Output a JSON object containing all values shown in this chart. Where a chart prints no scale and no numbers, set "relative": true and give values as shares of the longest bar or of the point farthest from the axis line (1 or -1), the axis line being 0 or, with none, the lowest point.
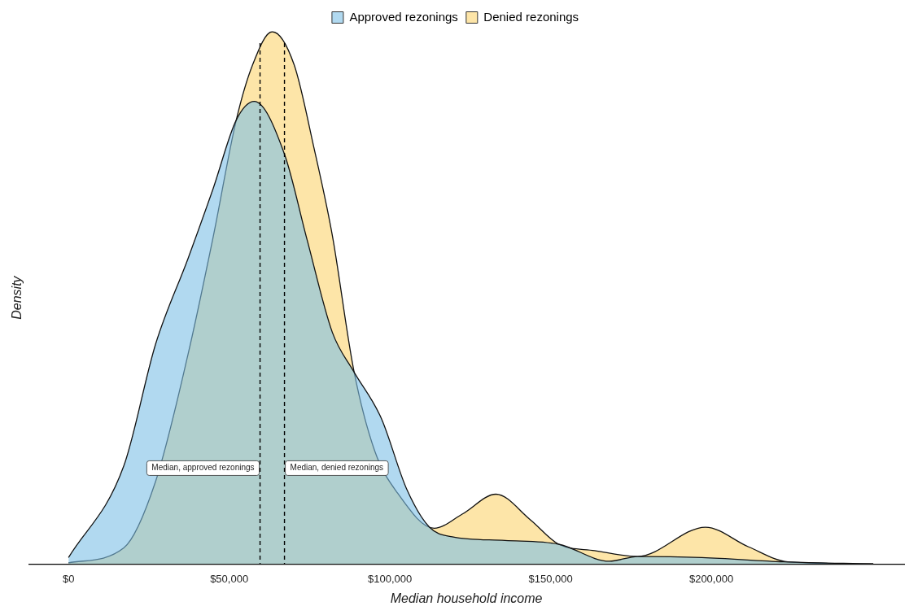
{
  "chart_data": {
    "type": "area",
    "relative": true,
    "xlabel": "Median household income",
    "ylabel": "Density",
    "xlim": [
      -12400,
      260000
    ],
    "xticks": [
      {
        "value": 0,
        "label": "$0"
      },
      {
        "value": 50000,
        "label": "$50,000"
      },
      {
        "value": 100000,
        "label": "$100,000"
      },
      {
        "value": 150000,
        "label": "$150,000"
      },
      {
        "value": 200000,
        "label": "$200,000"
      }
    ],
    "legend": "top",
    "series": [
      {
        "name": "Approved rezonings",
        "color": "#7dbfe6",
        "x": [
          0,
          17200,
          27100,
          37200,
          45100,
          52200,
          57800,
          67200,
          74200,
          82100,
          88700,
          97300,
          105200,
          112300,
          119400,
          135800,
          152500,
          168300,
          177100,
          197100,
          222500,
          250400
        ],
        "values": [
          0.012,
          0.184,
          0.413,
          0.574,
          0.707,
          0.834,
          0.869,
          0.77,
          0.61,
          0.435,
          0.362,
          0.274,
          0.141,
          0.069,
          0.051,
          0.044,
          0.037,
          0.005,
          0.014,
          0.012,
          0.004,
          0
        ]
      },
      {
        "name": "Denied rezonings",
        "color": "#fcd46e",
        "x": [
          0,
          17200,
          27100,
          37200,
          45100,
          52200,
          57300,
          63400,
          70200,
          76300,
          82100,
          88700,
          95300,
          102400,
          113800,
          122600,
          133000,
          143700,
          152500,
          163700,
          177100,
          198200,
          211600,
          223800,
          250400
        ],
        "values": [
          0.002,
          0.03,
          0.155,
          0.394,
          0.617,
          0.834,
          0.938,
          1,
          0.938,
          0.784,
          0.617,
          0.366,
          0.212,
          0.133,
          0.067,
          0.094,
          0.131,
          0.083,
          0.037,
          0.025,
          0.014,
          0.069,
          0.032,
          0.004,
          0
        ]
      }
    ],
    "ref_lines": [
      {
        "axis": "x",
        "value": 59600,
        "label": "Median, approved rezonings",
        "line_style": "dashed"
      },
      {
        "axis": "x",
        "value": 67200,
        "label": "Median, denied rezonings",
        "line_style": "dashed"
      }
    ]
  }
}
